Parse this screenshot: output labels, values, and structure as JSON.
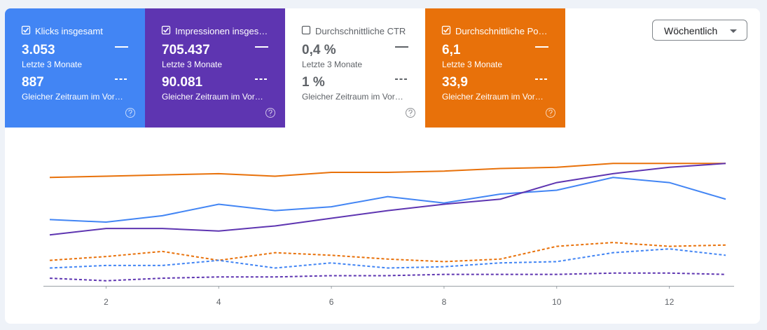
{
  "toolbar": {
    "period_button": "Wöchentlich"
  },
  "cards": [
    {
      "title": "Klicks insgesamt",
      "selected": true,
      "color": "#4285f4",
      "value": "3.053",
      "period": "Letzte 3 Monate",
      "compare_value": "887",
      "compare_period": "Gleicher Zeitraum im Vor…"
    },
    {
      "title": "Impressionen insges…",
      "selected": true,
      "color": "#5e35b1",
      "value": "705.437",
      "period": "Letzte 3 Monate",
      "compare_value": "90.081",
      "compare_period": "Gleicher Zeitraum im Vor…"
    },
    {
      "title": "Durchschnittliche CTR",
      "selected": false,
      "color": "#00897b",
      "value": "0,4 %",
      "period": "Letzte 3 Monate",
      "compare_value": "1 %",
      "compare_period": "Gleicher Zeitraum im Vor…"
    },
    {
      "title": "Durchschnittliche Po…",
      "selected": true,
      "color": "#e8710a",
      "value": "6,1",
      "period": "Letzte 3 Monate",
      "compare_value": "33,9",
      "compare_period": "Gleicher Zeitraum im Vor…"
    }
  ],
  "chart_data": {
    "type": "line",
    "x": [
      1,
      2,
      3,
      4,
      5,
      6,
      7,
      8,
      9,
      10,
      11,
      12,
      13
    ],
    "xlim": [
      1,
      13
    ],
    "xticks": [
      2,
      4,
      6,
      8,
      10,
      12
    ],
    "ylim": [
      0,
      100
    ],
    "series": [
      {
        "color": "#e8710a",
        "dashed": false,
        "values": [
          85,
          86,
          87,
          88,
          86,
          89,
          89,
          90,
          92,
          93,
          96,
          96,
          96
        ]
      },
      {
        "color": "#4285f4",
        "dashed": false,
        "values": [
          52,
          50,
          55,
          64,
          59,
          62,
          70,
          65,
          72,
          75,
          85,
          81,
          68
        ]
      },
      {
        "color": "#5e35b1",
        "dashed": false,
        "values": [
          40,
          45,
          45,
          43,
          47,
          53,
          59,
          64,
          68,
          81,
          88,
          93,
          96
        ]
      },
      {
        "color": "#e8710a",
        "dashed": true,
        "values": [
          20,
          23,
          27,
          20,
          26,
          24,
          21,
          19,
          21,
          31,
          34,
          31,
          32
        ]
      },
      {
        "color": "#4285f4",
        "dashed": true,
        "values": [
          14,
          16,
          16,
          20,
          14,
          18,
          14,
          15,
          18,
          19,
          26,
          29,
          24
        ]
      },
      {
        "color": "#5e35b1",
        "dashed": true,
        "values": [
          6,
          4,
          6,
          7,
          7,
          8,
          8,
          9,
          9,
          9,
          10,
          10,
          9
        ]
      }
    ]
  }
}
